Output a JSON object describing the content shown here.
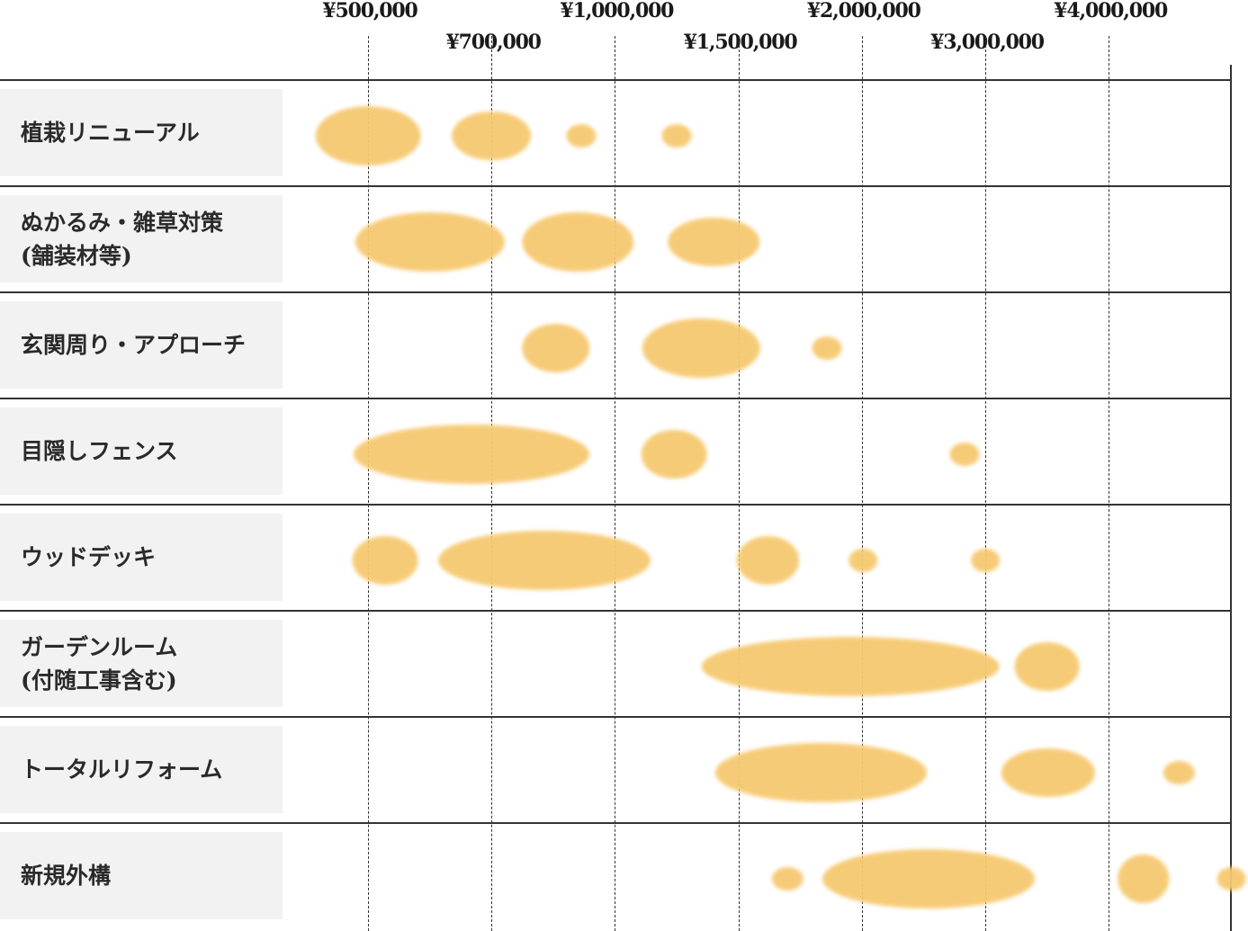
{
  "chart_data": {
    "type": "bubble-range",
    "x_tick_labels": [
      "¥500,000",
      "¥700,000",
      "¥1,000,000",
      "¥1,500,000",
      "¥2,000,000",
      "¥3,000,000",
      "¥4,000,000"
    ],
    "categories": [
      {
        "label": "植栽リニューアル",
        "bubbles": [
          {
            "center_index": 0.0,
            "span": 0.85,
            "size": "large"
          },
          {
            "center_index": 1.0,
            "span": 0.64,
            "size": "medium"
          },
          {
            "center_index": 1.73,
            "span": 0.24,
            "size": "small"
          },
          {
            "center_index": 2.5,
            "span": 0.24,
            "size": "small"
          }
        ]
      },
      {
        "label": "ぬかるみ・雑草対策\n(舗装材等)",
        "bubbles": [
          {
            "center_index": 0.5,
            "span": 1.21,
            "size": "large"
          },
          {
            "center_index": 1.7,
            "span": 0.9,
            "size": "large"
          },
          {
            "center_index": 2.8,
            "span": 0.74,
            "size": "medium"
          }
        ]
      },
      {
        "label": "玄関周り・アプローチ",
        "bubbles": [
          {
            "center_index": 1.52,
            "span": 0.55,
            "size": "medium"
          },
          {
            "center_index": 2.7,
            "span": 0.95,
            "size": "large"
          },
          {
            "center_index": 3.72,
            "span": 0.24,
            "size": "small"
          }
        ]
      },
      {
        "label": "目隠しフェンス",
        "bubbles": [
          {
            "center_index": 0.84,
            "span": 1.91,
            "size": "large"
          },
          {
            "center_index": 2.48,
            "span": 0.53,
            "size": "medium"
          },
          {
            "center_index": 4.83,
            "span": 0.24,
            "size": "small"
          }
        ]
      },
      {
        "label": "ウッドデッキ",
        "bubbles": [
          {
            "center_index": 0.14,
            "span": 0.53,
            "size": "medium"
          },
          {
            "center_index": 1.43,
            "span": 1.72,
            "size": "large"
          },
          {
            "center_index": 3.24,
            "span": 0.51,
            "size": "medium"
          },
          {
            "center_index": 4.01,
            "span": 0.23,
            "size": "small"
          },
          {
            "center_index": 5.0,
            "span": 0.23,
            "size": "small"
          }
        ]
      },
      {
        "label": "ガーデンルーム\n(付随工事含む)",
        "bubbles": [
          {
            "center_index": 3.91,
            "span": 2.41,
            "size": "large"
          },
          {
            "center_index": 5.5,
            "span": 0.53,
            "size": "medium"
          }
        ]
      },
      {
        "label": "トータルリフォーム",
        "bubbles": [
          {
            "center_index": 3.67,
            "span": 1.72,
            "size": "large"
          },
          {
            "center_index": 5.51,
            "span": 0.76,
            "size": "medium"
          },
          {
            "center_index": 6.57,
            "span": 0.25,
            "size": "small"
          }
        ]
      },
      {
        "label": "新規外構",
        "bubbles": [
          {
            "center_index": 3.4,
            "span": 0.25,
            "size": "small"
          },
          {
            "center_index": 4.54,
            "span": 1.72,
            "size": "large"
          },
          {
            "center_index": 6.28,
            "span": 0.42,
            "size": "medium"
          },
          {
            "center_index": 7.0,
            "span": 0.25,
            "size": "small"
          }
        ]
      }
    ]
  }
}
